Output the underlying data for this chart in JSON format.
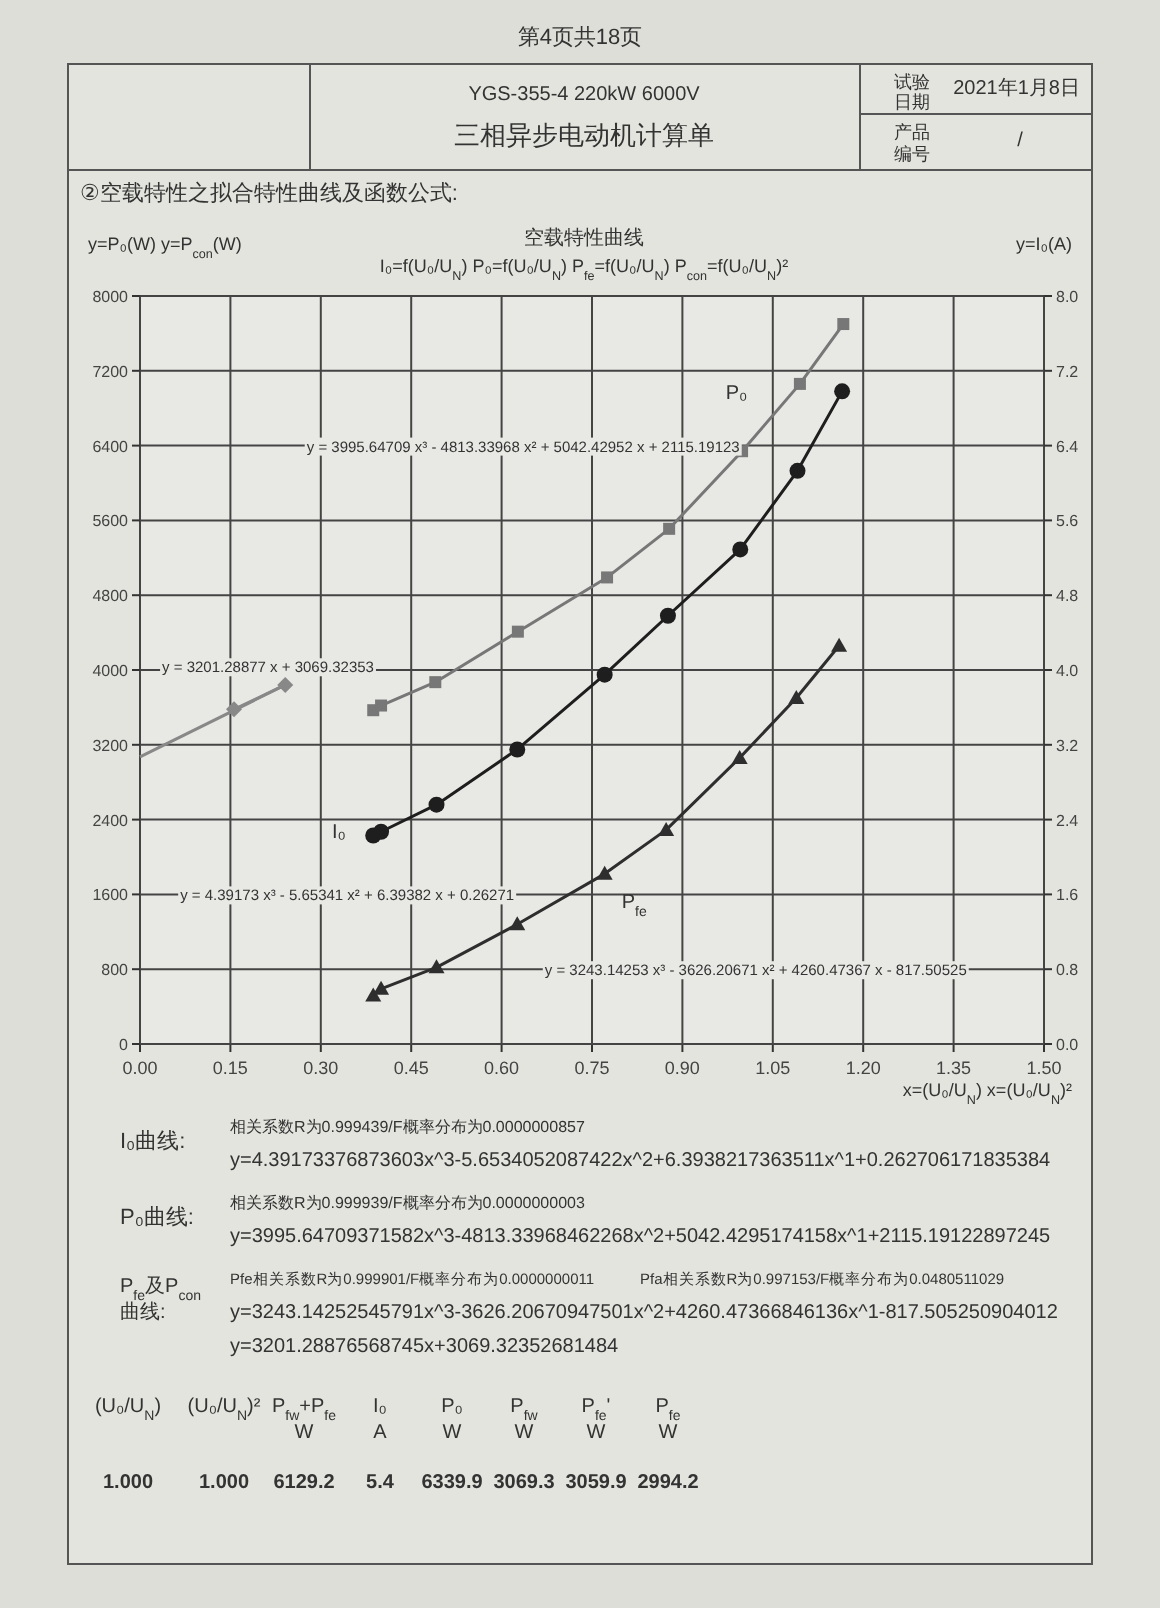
{
  "chart_data": {
    "type": "line",
    "title": "空载特性曲线",
    "subtitle": "I₀=f(U₀/U$_{N}$)  P₀=f(U₀/U$_{N}$)  P$_{fe}$=f(U₀/U$_{N}$)  P$_{con}$=f(U₀/U$_{N}$)²",
    "xlabel": "x=(U₀/U$_{N}$)  x=(U₀/U$_{N}$)²",
    "ylabel": "y=P₀(W)  y=P$_{con}$(W)",
    "y2label": "y=I₀(A)",
    "xlim": [
      0,
      1.5
    ],
    "xticks": [
      {
        "value": 0,
        "label": "0.00"
      },
      {
        "value": 0.15,
        "label": "0.15"
      },
      {
        "value": 0.3,
        "label": "0.30"
      },
      {
        "value": 0.45,
        "label": "0.45"
      },
      {
        "value": 0.6,
        "label": "0.60"
      },
      {
        "value": 0.75,
        "label": "0.75"
      },
      {
        "value": 0.9,
        "label": "0.90"
      },
      {
        "value": 1.05,
        "label": "1.05"
      },
      {
        "value": 1.2,
        "label": "1.20"
      },
      {
        "value": 1.35,
        "label": "1.35"
      },
      {
        "value": 1.5,
        "label": "1.50"
      }
    ],
    "ylim": [
      0,
      8000
    ],
    "yticks": [
      0,
      800,
      1600,
      2400,
      3200,
      4000,
      4800,
      5600,
      6400,
      7200,
      8000
    ],
    "y2lim": [
      0,
      8
    ],
    "y2ticks": [
      {
        "value": 0,
        "label": "0.0"
      },
      {
        "value": 0.8,
        "label": "0.8"
      },
      {
        "value": 1.6,
        "label": "1.6"
      },
      {
        "value": 2.4,
        "label": "2.4"
      },
      {
        "value": 3.2,
        "label": "3.2"
      },
      {
        "value": 4,
        "label": "4.0"
      },
      {
        "value": 4.8,
        "label": "4.8"
      },
      {
        "value": 5.6,
        "label": "5.6"
      },
      {
        "value": 6.4,
        "label": "6.4"
      },
      {
        "value": 7.2,
        "label": "7.2"
      },
      {
        "value": 8,
        "label": "8.0"
      }
    ],
    "grid": true,
    "series": [
      {
        "name": "P₀",
        "color": "#777777",
        "marker": "square",
        "x": [
          0.387,
          0.4,
          0.49,
          0.627,
          0.775,
          0.878,
          0.999,
          1.095,
          1.167
        ],
        "values": [
          3570,
          3620,
          3870,
          4410,
          4990,
          5510,
          6340,
          7060,
          7700
        ]
      },
      {
        "color": "#888888",
        "marker": "diamond",
        "x": [
          0.156,
          0.241
        ],
        "values": [
          3580,
          3840
        ]
      },
      {
        "type": "line",
        "color": "#888888",
        "marker": "none",
        "x": [
          0,
          0.241
        ],
        "values": [
          3070,
          3840
        ]
      },
      {
        "name": "I₀",
        "color": "#1e1e1e",
        "marker": "circle",
        "axis": "y2",
        "x": [
          0.387,
          0.4,
          0.492,
          0.626,
          0.771,
          0.876,
          0.996,
          1.091,
          1.165
        ],
        "values": [
          2.23,
          2.27,
          2.56,
          3.15,
          3.95,
          4.58,
          5.29,
          6.13,
          6.98
        ]
      },
      {
        "name": "P$_{fe}$",
        "color": "#2e2e2e",
        "marker": "triangle",
        "x": [
          0.387,
          0.4,
          0.492,
          0.626,
          0.771,
          0.873,
          0.995,
          1.089,
          1.16
        ],
        "values": [
          520,
          590,
          820,
          1280,
          1820,
          2290,
          3060,
          3700,
          4260
        ]
      }
    ],
    "annotations": [
      "第4页共18页",
      "YGS-355-4 220kW 6000V",
      "三相异步电动机计算单",
      "试验",
      "日期",
      "2021年1月8日",
      "产品",
      "编号",
      "/",
      "②空载特性之拟合特性曲线及函数公式:",
      "y = 3995.64709 x³ - 4813.33968 x² + 5042.42952 x + 2115.19123",
      "y = 3201.28877 x + 3069.32353",
      "y = 4.39173 x³ - 5.65341 x² + 6.39382 x + 0.26271",
      "y = 3243.14253 x³ - 3626.20671 x² + 4260.47367 x - 817.50525",
      "I₀曲线:",
      "相关系数R为0.999439/F概率分布为0.0000000857",
      "y=4.39173376873603x^3-5.6534052087422x^2+6.3938217363511x^1+0.262706171835384",
      "P₀曲线:",
      "相关系数R为0.999939/F概率分布为0.0000000003",
      "y=3995.64709371582x^3-4813.33968462268x^2+5042.4295174158x^1+2115.19122897245",
      "P$_{fe}$及P$_{con}$\n曲线:",
      "Pfe相关系数R为0.999901/F概率分布为0.0000000011",
      "Pfa相关系数R为0.997153/F概率分布为0.0480511029",
      "y=3243.14252545791x^3-3626.20670947501x^2+4260.47366846136x^1-817.505250904012",
      "y=3201.28876568745x+3069.32352681484",
      "(U₀/U$_{N}$)",
      "(U₀/U$_{N}$)²",
      "P$_{fw}$+P$_{fe}$\nW",
      "I₀\nA",
      "P₀\nW",
      "P$_{fw}$\nW",
      "P$_{fe}$'\nW",
      "P$_{fe}$\nW",
      "1.000",
      "1.000",
      "6129.2",
      "5.4",
      "6339.9",
      "3069.3",
      "3059.9",
      "2994.2"
    ]
  }
}
